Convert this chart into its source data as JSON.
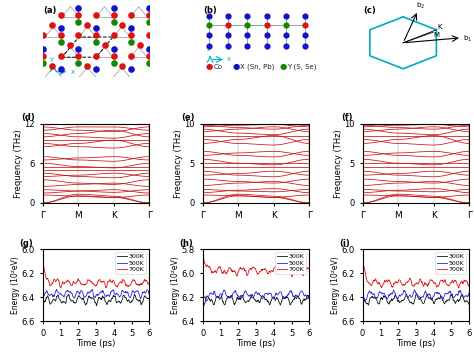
{
  "phonon_d": {
    "ylabel": "Frequency (THz)",
    "ylim": [
      0,
      12
    ],
    "yticks": [
      0,
      6,
      12
    ],
    "xticklabels": [
      "Γ",
      "M",
      "K",
      "Γ"
    ]
  },
  "phonon_e": {
    "ylabel": "Frequency (THz)",
    "ylim": [
      0,
      10
    ],
    "yticks": [
      0,
      5,
      10
    ],
    "xticklabels": [
      "Γ",
      "M",
      "K",
      "Γ"
    ]
  },
  "phonon_f": {
    "ylabel": "Frequency (THz)",
    "ylim": [
      0,
      10
    ],
    "yticks": [
      0,
      5,
      10
    ],
    "xticklabels": [
      "Γ",
      "M",
      "K",
      "Γ"
    ]
  },
  "md_g": {
    "ylabel": "Energy (10²eV)",
    "ylim": [
      6.6,
      6.0
    ],
    "yticks": [
      6.0,
      6.2,
      6.4,
      6.6
    ],
    "xlabel": "Time (ps)",
    "xlim": [
      0,
      6
    ],
    "xticks": [
      0,
      1,
      2,
      3,
      4,
      5,
      6
    ]
  },
  "md_h": {
    "ylabel": "Energy (10²eV)",
    "ylim": [
      6.4,
      5.8
    ],
    "yticks": [
      5.8,
      6.0,
      6.2,
      6.4
    ],
    "xlabel": "Time (ps)",
    "xlim": [
      0,
      6
    ],
    "xticks": [
      0,
      1,
      2,
      3,
      4,
      5,
      6
    ]
  },
  "md_i": {
    "ylabel": "Energy (10²eV)",
    "ylim": [
      6.6,
      6.0
    ],
    "yticks": [
      6.0,
      6.2,
      6.4,
      6.6
    ],
    "xlabel": "Time (ps)",
    "xlim": [
      0,
      6
    ],
    "xticks": [
      0,
      1,
      2,
      3,
      4,
      5,
      6
    ]
  },
  "colors": {
    "Co": "#dd1111",
    "X": "#1111cc",
    "Y": "#118800",
    "phonon_line": "#cc1111",
    "md_300K": "#111111",
    "md_500K": "#2222dd",
    "md_700K": "#dd1111",
    "bz_color": "#00aabb"
  }
}
